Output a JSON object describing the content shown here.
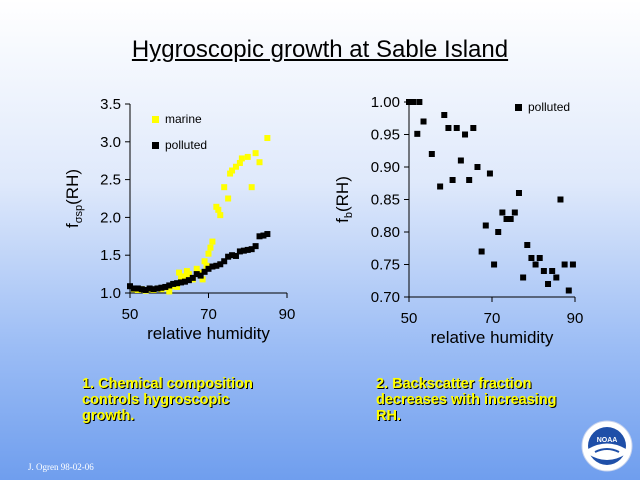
{
  "slide": {
    "title": "Hygroscopic growth at Sable Island",
    "caption_left": [
      "1. Chemical composition",
      "controls hygroscopic",
      "growth."
    ],
    "caption_right": [
      "2. Backscatter fraction",
      "decreases with increasing",
      "RH."
    ],
    "footer": "J. Ogren 98-02-06",
    "logo_text": "NOAA",
    "colors": {
      "marine": "#ffff00",
      "polluted": "#000000",
      "caption": "#ffff00"
    }
  },
  "chart_data": [
    {
      "type": "scatter",
      "title": "",
      "xlabel": "relative humidity",
      "ylabel_main": "f",
      "ylabel_sub": "σsp",
      "ylabel_tail": "(RH)",
      "xlim": [
        50,
        90
      ],
      "ylim": [
        1.0,
        3.5
      ],
      "xticks": [
        50,
        70,
        90
      ],
      "yticks": [
        1.0,
        1.5,
        2.0,
        2.5,
        3.0,
        3.5
      ],
      "ytick_labels": [
        "1.0",
        "1.5",
        "2.0",
        "2.5",
        "3.0",
        "3.5"
      ],
      "legend": "upper-left",
      "series": [
        {
          "name": "marine",
          "color": "#ffff00",
          "marker": "square",
          "points": [
            [
              51,
              1.05
            ],
            [
              52,
              1.04
            ],
            [
              53,
              1.05
            ],
            [
              54,
              1.03
            ],
            [
              55,
              1.05
            ],
            [
              56,
              1.04
            ],
            [
              57,
              1.06
            ],
            [
              58,
              1.05
            ],
            [
              59,
              1.07
            ],
            [
              60,
              1.02
            ],
            [
              61,
              1.09
            ],
            [
              62,
              1.08
            ],
            [
              62.5,
              1.27
            ],
            [
              63,
              1.19
            ],
            [
              64,
              1.22
            ],
            [
              64.5,
              1.29
            ],
            [
              65,
              1.25
            ],
            [
              66,
              1.18
            ],
            [
              67,
              1.32
            ],
            [
              68,
              1.27
            ],
            [
              68.5,
              1.18
            ],
            [
              69,
              1.42
            ],
            [
              69.5,
              1.36
            ],
            [
              70,
              1.52
            ],
            [
              70.5,
              1.6
            ],
            [
              71,
              1.68
            ],
            [
              72,
              2.14
            ],
            [
              72.5,
              2.1
            ],
            [
              73,
              2.03
            ],
            [
              74,
              2.4
            ],
            [
              75,
              2.25
            ],
            [
              75.5,
              2.58
            ],
            [
              76,
              2.62
            ],
            [
              77,
              2.67
            ],
            [
              78,
              2.72
            ],
            [
              78.5,
              2.78
            ],
            [
              80,
              2.8
            ],
            [
              81,
              2.4
            ],
            [
              82,
              2.85
            ],
            [
              83,
              2.73
            ],
            [
              85,
              3.05
            ]
          ]
        },
        {
          "name": "polluted",
          "color": "#000000",
          "marker": "square",
          "points": [
            [
              50,
              1.09
            ],
            [
              51,
              1.06
            ],
            [
              52,
              1.06
            ],
            [
              53,
              1.05
            ],
            [
              54,
              1.04
            ],
            [
              55,
              1.06
            ],
            [
              56,
              1.05
            ],
            [
              57,
              1.06
            ],
            [
              58,
              1.07
            ],
            [
              59,
              1.08
            ],
            [
              60,
              1.1
            ],
            [
              61,
              1.12
            ],
            [
              62,
              1.13
            ],
            [
              63,
              1.14
            ],
            [
              64,
              1.15
            ],
            [
              65,
              1.17
            ],
            [
              66,
              1.2
            ],
            [
              67,
              1.25
            ],
            [
              68,
              1.23
            ],
            [
              69,
              1.28
            ],
            [
              70,
              1.32
            ],
            [
              71,
              1.35
            ],
            [
              72,
              1.36
            ],
            [
              73,
              1.38
            ],
            [
              74,
              1.42
            ],
            [
              75,
              1.48
            ],
            [
              76,
              1.5
            ],
            [
              77,
              1.49
            ],
            [
              78,
              1.55
            ],
            [
              79,
              1.56
            ],
            [
              80,
              1.57
            ],
            [
              81,
              1.58
            ],
            [
              82,
              1.62
            ],
            [
              83,
              1.75
            ],
            [
              84,
              1.76
            ],
            [
              85,
              1.78
            ]
          ]
        }
      ]
    },
    {
      "type": "scatter",
      "title": "",
      "xlabel": "relative humidity",
      "ylabel_main": "f",
      "ylabel_sub": "b",
      "ylabel_tail": "(RH)",
      "xlim": [
        50,
        90
      ],
      "ylim": [
        0.7,
        1.0
      ],
      "xticks": [
        50,
        70,
        90
      ],
      "yticks": [
        0.7,
        0.75,
        0.8,
        0.85,
        0.9,
        0.95,
        1.0
      ],
      "ytick_labels": [
        "0.70",
        "0.75",
        "0.80",
        "0.85",
        "0.90",
        "0.95",
        "1.00"
      ],
      "legend": "upper-right",
      "series": [
        {
          "name": "polluted",
          "color": "#000000",
          "marker": "square",
          "points": [
            [
              50,
              1.0
            ],
            [
              50.5,
              1.0
            ],
            [
              51,
              1.0
            ],
            [
              52,
              0.951
            ],
            [
              52.5,
              1.0
            ],
            [
              53.5,
              0.97
            ],
            [
              55.5,
              0.92
            ],
            [
              57.5,
              0.87
            ],
            [
              58.5,
              0.98
            ],
            [
              59.5,
              0.96
            ],
            [
              60.5,
              0.88
            ],
            [
              61.5,
              0.96
            ],
            [
              62.5,
              0.91
            ],
            [
              63.5,
              0.95
            ],
            [
              64.5,
              0.88
            ],
            [
              65.5,
              0.96
            ],
            [
              66.5,
              0.9
            ],
            [
              67.5,
              0.77
            ],
            [
              68.5,
              0.81
            ],
            [
              69.5,
              0.89
            ],
            [
              70.5,
              0.75
            ],
            [
              71.5,
              0.8
            ],
            [
              72.5,
              0.83
            ],
            [
              73.5,
              0.82
            ],
            [
              74.5,
              0.82
            ],
            [
              75.5,
              0.83
            ],
            [
              76.5,
              0.86
            ],
            [
              77.5,
              0.73
            ],
            [
              78.5,
              0.78
            ],
            [
              79.5,
              0.76
            ],
            [
              80.5,
              0.75
            ],
            [
              81.5,
              0.76
            ],
            [
              82.5,
              0.74
            ],
            [
              83.5,
              0.72
            ],
            [
              84.5,
              0.74
            ],
            [
              85.5,
              0.73
            ],
            [
              86.5,
              0.85
            ],
            [
              87.5,
              0.75
            ],
            [
              88.5,
              0.71
            ],
            [
              89.5,
              0.75
            ]
          ]
        }
      ]
    }
  ]
}
